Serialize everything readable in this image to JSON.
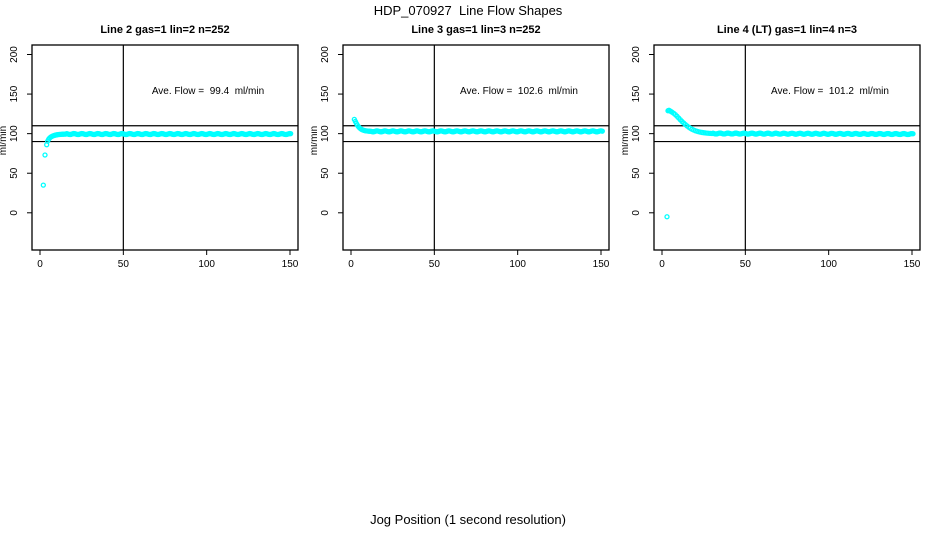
{
  "page": {
    "title": "HDP_070927  Line Flow Shapes",
    "xlabel": "Jog Position (1 second resolution)",
    "ylabel": "ml/min"
  },
  "colors": {
    "point": "#00FFFF",
    "axis": "#000000",
    "background": "#FFFFFF"
  },
  "chart_data": [
    {
      "type": "scatter",
      "title": "Line 2 gas=1 lin=2 n=252",
      "annotation": "Ave. Flow =  99.4  ml/min",
      "ave_flow_ml_min": 99.4,
      "n": 252,
      "xlim": [
        -4.8,
        154.8
      ],
      "ylim": [
        -47,
        212
      ],
      "x_ticks": [
        0,
        50,
        100,
        150
      ],
      "y_ticks": [
        0,
        50,
        100,
        150,
        200
      ],
      "ref_hlines": [
        90,
        110
      ],
      "ref_vlines": [
        50
      ],
      "points_transient": [
        [
          2,
          35
        ],
        [
          3,
          73
        ],
        [
          4,
          86
        ],
        [
          4.6,
          90.5
        ],
        [
          5.2,
          93
        ],
        [
          5.8,
          94.5
        ],
        [
          6.4,
          95.6
        ],
        [
          7,
          96.4
        ],
        [
          7.6,
          97
        ],
        [
          8.2,
          97.5
        ],
        [
          8.8,
          97.9
        ],
        [
          9.4,
          98.2
        ],
        [
          10,
          98.5
        ],
        [
          10.6,
          98.7
        ],
        [
          11.2,
          98.9
        ],
        [
          11.8,
          99
        ],
        [
          12.4,
          99.1
        ],
        [
          13,
          99.2
        ],
        [
          13.6,
          99.3
        ],
        [
          14.2,
          99.35
        ],
        [
          14.8,
          99.4
        ],
        [
          15.4,
          99.45
        ]
      ],
      "points_steady": {
        "from": 16,
        "to": 150.6,
        "step": 0.6,
        "value": 99.5,
        "slope": 0,
        "jitter": 0.6
      }
    },
    {
      "type": "scatter",
      "title": "Line 3 gas=1 lin=3 n=252",
      "annotation": "Ave. Flow =  102.6  ml/min",
      "ave_flow_ml_min": 102.6,
      "n": 252,
      "xlim": [
        -4.8,
        154.8
      ],
      "ylim": [
        -47,
        212
      ],
      "x_ticks": [
        0,
        50,
        100,
        150
      ],
      "y_ticks": [
        0,
        50,
        100,
        150,
        200
      ],
      "ref_hlines": [
        90,
        110
      ],
      "ref_vlines": [
        50
      ],
      "points_transient": [
        [
          2,
          118
        ],
        [
          2.6,
          115.5
        ],
        [
          3.2,
          113
        ],
        [
          3.8,
          110.8
        ],
        [
          4.4,
          109
        ],
        [
          5,
          107.6
        ],
        [
          5.6,
          106.5
        ],
        [
          6.2,
          105.6
        ],
        [
          6.8,
          104.9
        ],
        [
          7.4,
          104.4
        ],
        [
          8,
          104
        ],
        [
          8.6,
          103.7
        ],
        [
          9.2,
          103.5
        ],
        [
          9.8,
          103.3
        ],
        [
          10.4,
          103.2
        ],
        [
          11,
          103.1
        ],
        [
          11.6,
          103
        ],
        [
          12.2,
          102.9
        ]
      ],
      "points_steady": {
        "from": 12.8,
        "to": 150.8,
        "step": 0.6,
        "value": 102.9,
        "slope": 0,
        "jitter": 0.6
      }
    },
    {
      "type": "scatter",
      "title": "Line 4 (LT) gas=1 lin=4 n=3",
      "annotation": "Ave. Flow =  101.2  ml/min",
      "ave_flow_ml_min": 101.2,
      "n": 3,
      "xlim": [
        -4.8,
        154.8
      ],
      "ylim": [
        -47,
        212
      ],
      "x_ticks": [
        0,
        50,
        100,
        150
      ],
      "y_ticks": [
        0,
        50,
        100,
        150,
        200
      ],
      "ref_hlines": [
        90,
        110
      ],
      "ref_vlines": [
        50
      ],
      "points_transient": [
        [
          3,
          -5
        ],
        [
          3.6,
          129
        ],
        [
          4.2,
          129.5
        ],
        [
          4.8,
          128.8
        ],
        [
          5.4,
          128
        ],
        [
          6,
          127.2
        ],
        [
          7,
          125.8
        ],
        [
          8,
          124
        ],
        [
          9,
          122
        ],
        [
          10,
          119.8
        ],
        [
          11,
          117.6
        ],
        [
          12,
          115.4
        ],
        [
          13,
          113.4
        ],
        [
          14,
          111.5
        ],
        [
          15,
          109.8
        ],
        [
          16,
          108.2
        ],
        [
          17,
          106.8
        ],
        [
          18,
          105.6
        ],
        [
          19,
          104.6
        ],
        [
          20,
          103.7
        ],
        [
          21,
          103
        ],
        [
          22,
          102.4
        ],
        [
          23,
          101.9
        ],
        [
          24,
          101.5
        ],
        [
          25,
          101.2
        ],
        [
          26,
          100.9
        ],
        [
          27,
          100.7
        ],
        [
          28,
          100.5
        ],
        [
          29,
          100.35
        ],
        [
          30,
          100.2
        ]
      ],
      "points_steady": {
        "from": 30.6,
        "to": 150.6,
        "step": 0.6,
        "value": 100.2,
        "slope": -0.006,
        "jitter": 0.6
      }
    }
  ]
}
